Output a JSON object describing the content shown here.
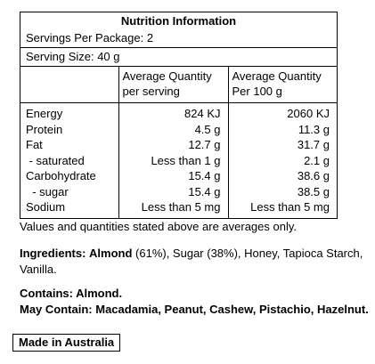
{
  "panel": {
    "title": "Nutrition Information",
    "servings_per_package": "Servings Per Package: 2",
    "serving_size": "Serving Size: 40 g",
    "col_per_serving": [
      "Average Quantity",
      "per serving"
    ],
    "col_per_100g": [
      "Average Quantity",
      "Per 100 g"
    ],
    "rows": [
      {
        "name": "Energy",
        "per_serving": "824 KJ",
        "per_100g": "2060 KJ"
      },
      {
        "name": "Protein",
        "per_serving": "4.5 g",
        "per_100g": "11.3 g"
      },
      {
        "name": "Fat",
        "per_serving": "12.7 g",
        "per_100g": "31.7 g"
      },
      {
        "name": " - saturated",
        "per_serving": "Less than 1 g",
        "per_100g": "2.1 g"
      },
      {
        "name": "Carbohydrate",
        "per_serving": "15.4 g",
        "per_100g": "38.6 g"
      },
      {
        "name": "  - sugar",
        "per_serving": "15.4 g",
        "per_100g": "38.5 g"
      },
      {
        "name": "Sodium",
        "per_serving": "Less than 5 mg",
        "per_100g": "Less than 5 mg"
      }
    ]
  },
  "note": "Values and quantities stated above are averages only.",
  "ingredients": {
    "label": "Ingredients:",
    "first": "Almond",
    "rest": " (61%), Sugar (38%), Honey, Tapioca Starch, Vanilla."
  },
  "contains": {
    "line1": "Contains: Almond.",
    "line2_label": "May Contain:",
    "line2_value": " Macadamia, Peanut, Cashew, Pistachio, Hazelnut."
  },
  "origin": "Made in Australia"
}
